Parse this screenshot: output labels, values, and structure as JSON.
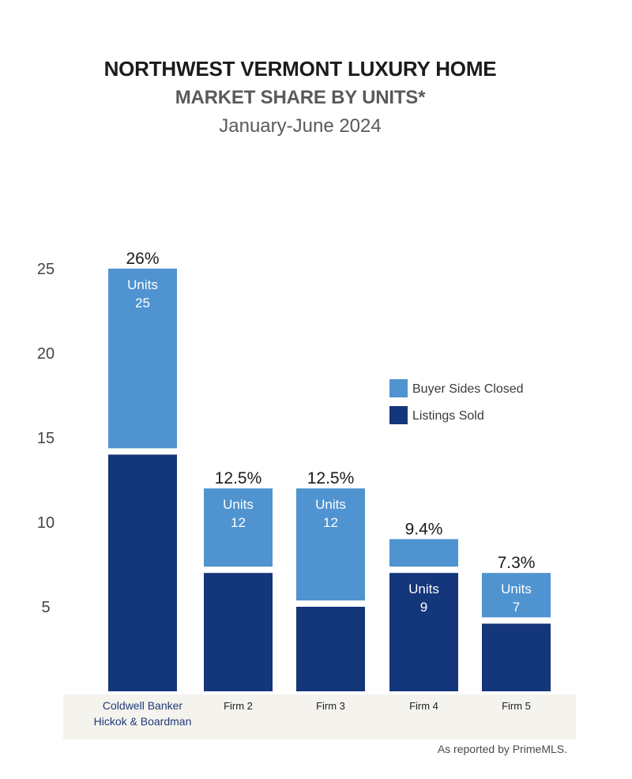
{
  "titles": {
    "line1": "NORTHWEST VERMONT LUXURY HOME",
    "line2": "MARKET SHARE BY UNITS*",
    "line3": "January-June 2024"
  },
  "colors": {
    "buyer_sides": "#4f93d0",
    "listings_sold": "#14367a",
    "category_band": "#f5f3ee",
    "first_category_label": "#1e3a78",
    "axis_text": "#444444"
  },
  "chart_data": {
    "type": "bar",
    "stacked": true,
    "categories": [
      [
        "Coldwell Banker",
        "Hickok & Boardman"
      ],
      [
        "Firm 2"
      ],
      [
        "Firm 3"
      ],
      [
        "Firm 4"
      ],
      [
        "Firm 5"
      ]
    ],
    "series": [
      {
        "name": "Listings Sold",
        "values": [
          14,
          7,
          5,
          7,
          4
        ]
      },
      {
        "name": "Buyer Sides Closed",
        "values": [
          11,
          5,
          7,
          2,
          3
        ]
      }
    ],
    "totals": [
      25,
      12,
      12,
      9,
      7
    ],
    "share_labels": [
      "26%",
      "12.5%",
      "12.5%",
      "9.4%",
      "7.3%"
    ],
    "unit_labels": [
      {
        "label": "Units",
        "value": "25",
        "series": "Buyer Sides Closed"
      },
      {
        "label": "Units",
        "value": "12",
        "series": "Buyer Sides Closed"
      },
      {
        "label": "Units",
        "value": "12",
        "series": "Buyer Sides Closed"
      },
      {
        "label": "Units",
        "value": "9",
        "series": "Listings Sold"
      },
      {
        "label": "Units",
        "value": "7",
        "series": "Buyer Sides Closed"
      }
    ],
    "yticks": [
      5,
      10,
      15,
      20,
      25
    ],
    "ylim": [
      0,
      25
    ],
    "legend_position": "right",
    "grid": false
  },
  "footer": {
    "source": "As reported by PrimeMLS."
  }
}
